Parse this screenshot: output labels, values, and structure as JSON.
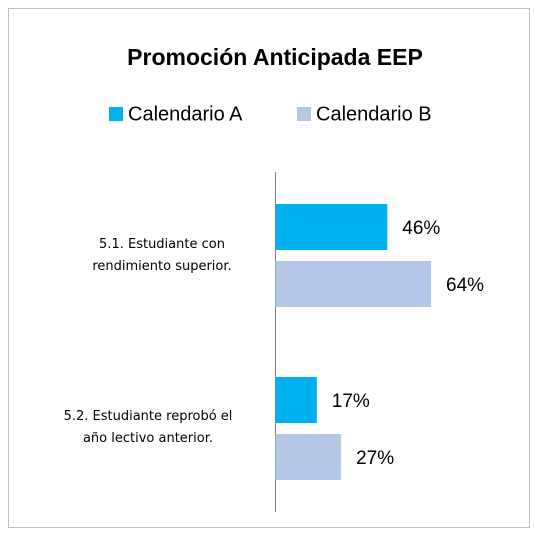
{
  "chart_data": {
    "type": "bar",
    "orientation": "horizontal",
    "title": "Promoción Anticipada  EEP",
    "categories": [
      "5.1. Estudiante con rendimiento superior.",
      "5.2. Estudiante reprobó el año lectivo anterior."
    ],
    "series": [
      {
        "name": "Calendario A",
        "color": "#00b0f0",
        "values": [
          46,
          17
        ],
        "value_labels": [
          "46%",
          "17%"
        ]
      },
      {
        "name": "Calendario B",
        "color": "#b4c7e7",
        "values": [
          64,
          27
        ],
        "value_labels": [
          "64%",
          "27%"
        ]
      }
    ]
  }
}
